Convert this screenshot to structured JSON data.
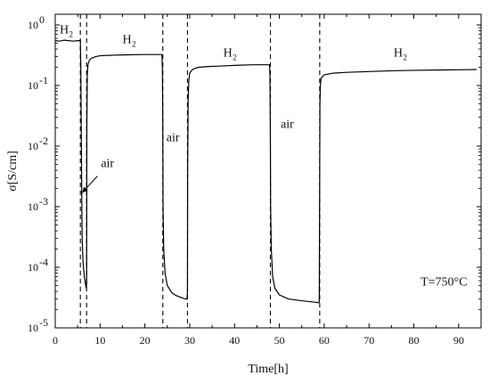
{
  "chart_data": {
    "type": "line",
    "title": "",
    "xlabel": "Time[h]",
    "ylabel": "σ[S/cm]",
    "xlim": [
      0,
      95
    ],
    "ylim": [
      1e-05,
      1.5
    ],
    "yscale": "log",
    "grid": false,
    "x_ticks": [
      0,
      10,
      20,
      30,
      40,
      50,
      60,
      70,
      80,
      90
    ],
    "x_tick_labels": [
      "0",
      "10",
      "20",
      "30",
      "40",
      "50",
      "60",
      "70",
      "80",
      "90"
    ],
    "y_ticks": [
      1e-05,
      0.0001,
      0.001,
      0.01,
      0.1,
      1
    ],
    "y_tick_labels": [
      {
        "base": "10",
        "exp": "-5"
      },
      {
        "base": "10",
        "exp": "-4"
      },
      {
        "base": "10",
        "exp": "-3"
      },
      {
        "base": "10",
        "exp": "-2"
      },
      {
        "base": "10",
        "exp": "-1"
      },
      {
        "base": "10",
        "exp": "0"
      }
    ],
    "series": [
      {
        "x": [
          0,
          1,
          2,
          3,
          4,
          5,
          5.6,
          5.7,
          5.8,
          5.9,
          6.0,
          6.2,
          6.5,
          6.8,
          6.95,
          7.0,
          7.05,
          7.15,
          7.3,
          7.6,
          8,
          9,
          10,
          12,
          15,
          20,
          23,
          23.8,
          23.9,
          24.0,
          24.05,
          24.2,
          24.5,
          25,
          26,
          27,
          28,
          29,
          29.4,
          29.5,
          29.55,
          29.65,
          29.8,
          30,
          30.5,
          31,
          32,
          34,
          37,
          40,
          44,
          47.8,
          47.9,
          48.0,
          48.05,
          48.2,
          48.5,
          49,
          50,
          52,
          55,
          57,
          58.8,
          58.9,
          59.0,
          59.05,
          59.15,
          59.3,
          59.6,
          60,
          61,
          62,
          65,
          70,
          75,
          80,
          85,
          90,
          94
        ],
        "y": [
          0.55,
          0.54,
          0.56,
          0.55,
          0.54,
          0.55,
          0.55,
          0.2,
          0.02,
          0.002,
          0.0003,
          0.00012,
          7e-05,
          5e-05,
          4.5e-05,
          6e-05,
          0.02,
          0.15,
          0.22,
          0.26,
          0.28,
          0.3,
          0.31,
          0.315,
          0.32,
          0.325,
          0.325,
          0.325,
          0.2,
          0.02,
          0.001,
          0.0002,
          8e-05,
          5e-05,
          3.8e-05,
          3.4e-05,
          3.2e-05,
          3e-05,
          3e-05,
          4e-05,
          0.005,
          0.06,
          0.12,
          0.16,
          0.18,
          0.19,
          0.2,
          0.205,
          0.21,
          0.215,
          0.22,
          0.22,
          0.15,
          0.01,
          0.001,
          0.0002,
          7e-05,
          4.5e-05,
          3.5e-05,
          3e-05,
          2.8e-05,
          2.7e-05,
          2.6e-05,
          2.7e-05,
          0.004,
          0.05,
          0.1,
          0.13,
          0.14,
          0.15,
          0.155,
          0.16,
          0.165,
          0.17,
          0.175,
          0.178,
          0.18,
          0.182,
          0.184
        ]
      }
    ],
    "vlines": [
      5.6,
      7.0,
      24.0,
      29.5,
      48.0,
      59.0
    ],
    "annotations": [
      {
        "kind": "h2",
        "text": "H",
        "sub": "2",
        "x": 1.0,
        "y": 0.72
      },
      {
        "kind": "h2",
        "text": "H",
        "sub": "2",
        "x": 15.0,
        "y": 0.5
      },
      {
        "kind": "h2",
        "text": "H",
        "sub": "2",
        "x": 37.5,
        "y": 0.3
      },
      {
        "kind": "h2",
        "text": "H",
        "sub": "2",
        "x": 75.5,
        "y": 0.3
      },
      {
        "kind": "text",
        "text": "air",
        "x": 24.8,
        "y": 0.012
      },
      {
        "kind": "text",
        "text": "air",
        "x": 50.3,
        "y": 0.02
      },
      {
        "kind": "text",
        "text": "air",
        "x": 10.2,
        "y": 0.0045
      },
      {
        "kind": "text",
        "text": "T=750°C",
        "x": 81.5,
        "y": 5e-05
      }
    ],
    "arrow": {
      "from_x": 9.4,
      "from_y": 0.0032,
      "to_x": 6.0,
      "to_y": 0.0017
    }
  }
}
